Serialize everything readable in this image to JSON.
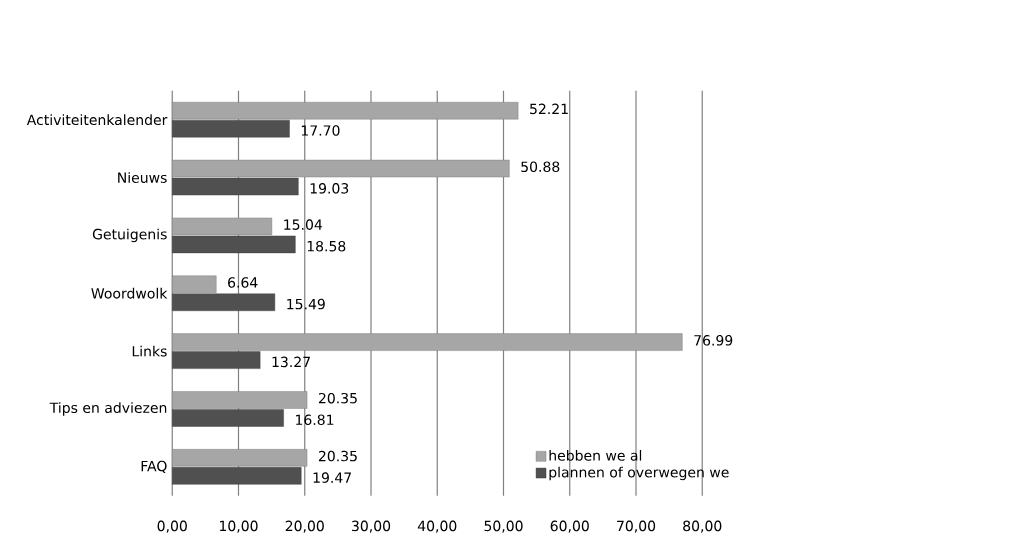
{
  "chart_data": {
    "type": "bar",
    "orientation": "horizontal",
    "categories": [
      "Activiteitenkalender",
      "Nieuws",
      "Getuigenis",
      "Woordwolk",
      "Links",
      "Tips en adviezen",
      "FAQ"
    ],
    "series": [
      {
        "name": "hebben we al",
        "color": "#a6a6a6",
        "values": [
          52.21,
          50.88,
          15.04,
          6.64,
          76.99,
          20.35,
          20.35
        ],
        "value_labels": [
          "52.21",
          "50.88",
          "15.04",
          "6.64",
          "76.99",
          "20.35",
          "20.35"
        ]
      },
      {
        "name": "plannen of overwegen we",
        "color": "#505050",
        "values": [
          17.7,
          19.03,
          18.58,
          15.49,
          13.27,
          16.81,
          19.47
        ],
        "value_labels": [
          "17.70",
          "19.03",
          "18.58",
          "15.49",
          "13.27",
          "16.81",
          "19.47"
        ]
      }
    ],
    "xlim": [
      0,
      80
    ],
    "xticks": [
      {
        "value": 0,
        "label": "0,00"
      },
      {
        "value": 10,
        "label": "10,00"
      },
      {
        "value": 20,
        "label": "20,00"
      },
      {
        "value": 30,
        "label": "30,00"
      },
      {
        "value": 40,
        "label": "40,00"
      },
      {
        "value": 50,
        "label": "50,00"
      },
      {
        "value": 60,
        "label": "60,00"
      },
      {
        "value": 70,
        "label": "70,00"
      },
      {
        "value": 80,
        "label": "80,00"
      }
    ],
    "grid": "x",
    "legend": "bottom right"
  }
}
